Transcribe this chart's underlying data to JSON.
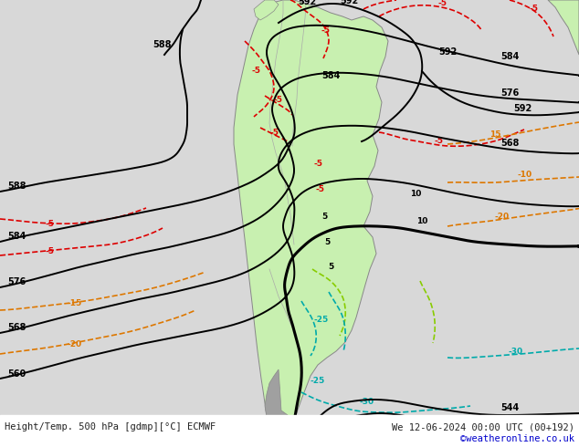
{
  "title_left": "Height/Temp. 500 hPa [gdmp][°C] ECMWF",
  "title_right": "We 12-06-2024 00:00 UTC (00+192)",
  "credit": "©weatheronline.co.uk",
  "credit_color": "#0000cc",
  "bg_color": "#d8d8d8",
  "ocean_color": "#d8d8d8",
  "land_color": "#c8f0b0",
  "land_edge": "#888888",
  "patagonia_color": "#a0a0a0",
  "fig_w": 6.34,
  "fig_h": 4.9,
  "dpi": 100
}
